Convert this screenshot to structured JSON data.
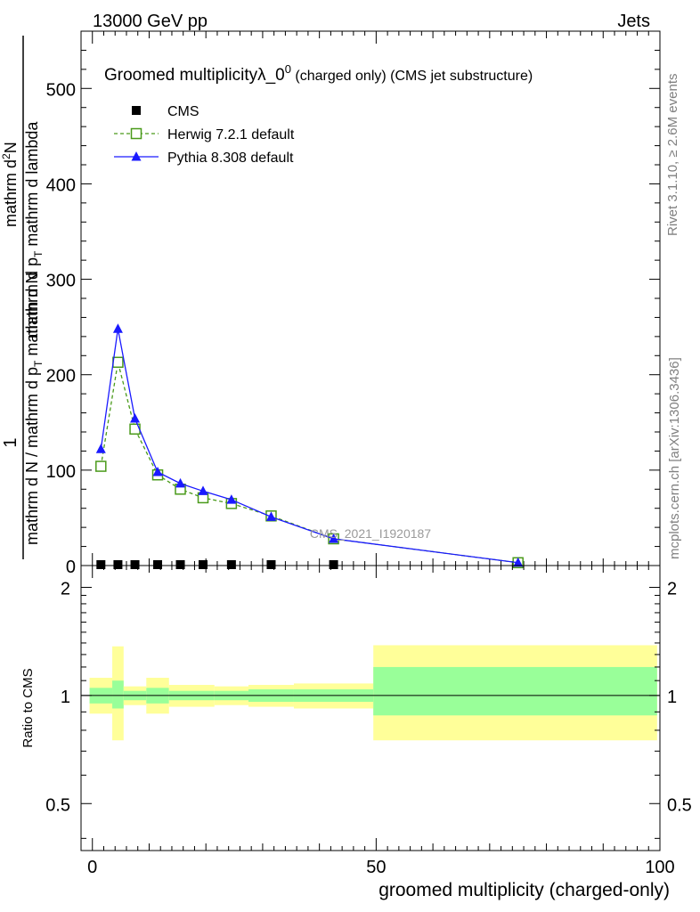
{
  "header": {
    "left": "13000 GeV pp",
    "right": "Jets"
  },
  "side_labels": {
    "rivet": "Rivet 3.1.10, ≥ 2.6M events",
    "mcplots": "mcplots.cern.ch [arXiv:1306.3436]"
  },
  "watermark": "CMS_2021_I1920187",
  "chart_data": [
    {
      "type": "line",
      "title": "Groomed multiplicityλ_0",
      "title_sup": "0",
      "title_suffix": " (charged only) (CMS jet substructure)",
      "ylabel_top": "1",
      "ylabel_bottom": "mathrm d N / mathrm d p",
      "ylabel_bottom_sub": "T",
      "ylabel_bottom_rest": " mathrm d N",
      "ylabel_numerator": "mathrm d",
      "ylabel_numerator_sup": "2",
      "ylabel_numerator_rest": "N",
      "ylabel_denominator": "mathrm d p",
      "ylabel_denominator_sub": "T",
      "ylabel_denominator_rest": " mathrm d lambda",
      "xlim": [
        -2,
        100
      ],
      "ylim": [
        0,
        560
      ],
      "y_ticks": [
        0,
        100,
        200,
        300,
        400,
        500
      ],
      "y_tick_labels": [
        "0",
        "100",
        "200",
        "300",
        "400",
        "500"
      ],
      "legend_position": "top-left",
      "series": [
        {
          "name": "CMS",
          "color": "#000000",
          "marker": "square-filled",
          "x": [
            1.5,
            4.5,
            7.5,
            11.5,
            15.5,
            19.5,
            24.5,
            31.5,
            42.5
          ],
          "y": [
            0,
            0,
            0,
            0,
            0,
            0,
            0,
            0,
            0
          ]
        },
        {
          "name": "Herwig 7.2.1 default",
          "color": "#4a9a1a",
          "marker": "square-open",
          "line": "dashed",
          "x": [
            1.5,
            4.5,
            7.5,
            11.5,
            15.5,
            19.5,
            24.5,
            31.5,
            42.5,
            75
          ],
          "y": [
            104,
            213,
            143,
            95,
            80,
            71,
            65,
            52,
            28,
            3
          ]
        },
        {
          "name": "Pythia 8.308 default",
          "color": "#1a1aff",
          "marker": "triangle-filled",
          "line": "solid",
          "x": [
            1.5,
            4.5,
            7.5,
            11.5,
            15.5,
            19.5,
            24.5,
            31.5,
            42.5,
            75
          ],
          "y": [
            122,
            248,
            154,
            98,
            86,
            78,
            69,
            51,
            28,
            3
          ]
        }
      ]
    },
    {
      "type": "area",
      "ylabel": "Ratio to CMS",
      "xlabel": "groomed multiplicity (charged-only)",
      "xlim": [
        -2,
        100
      ],
      "ylim": [
        0.37,
        2.3
      ],
      "scale": "log",
      "y_ticks": [
        0.5,
        1,
        2
      ],
      "y_tick_labels": [
        "0.5",
        "1",
        "2"
      ],
      "x_ticks": [
        0,
        50,
        100
      ],
      "x_tick_labels": [
        "0",
        "50",
        "100"
      ],
      "bins": [
        {
          "x0": -0.5,
          "x1": 3.5,
          "y_lo": 0.89,
          "y_hi": 1.12,
          "g_lo": 0.95,
          "g_hi": 1.05
        },
        {
          "x0": 3.5,
          "x1": 5.5,
          "y_lo": 0.75,
          "y_hi": 1.37,
          "g_lo": 0.92,
          "g_hi": 1.1
        },
        {
          "x0": 5.5,
          "x1": 9.5,
          "y_lo": 0.94,
          "y_hi": 1.06,
          "g_lo": 0.97,
          "g_hi": 1.03
        },
        {
          "x0": 9.5,
          "x1": 13.5,
          "y_lo": 0.89,
          "y_hi": 1.12,
          "g_lo": 0.95,
          "g_hi": 1.05
        },
        {
          "x0": 13.5,
          "x1": 21.5,
          "y_lo": 0.93,
          "y_hi": 1.07,
          "g_lo": 0.97,
          "g_hi": 1.03
        },
        {
          "x0": 21.5,
          "x1": 27.5,
          "y_lo": 0.94,
          "y_hi": 1.06,
          "g_lo": 0.97,
          "g_hi": 1.03
        },
        {
          "x0": 27.5,
          "x1": 35.5,
          "y_lo": 0.93,
          "y_hi": 1.07,
          "g_lo": 0.96,
          "g_hi": 1.04
        },
        {
          "x0": 35.5,
          "x1": 49.5,
          "y_lo": 0.92,
          "y_hi": 1.08,
          "g_lo": 0.96,
          "g_hi": 1.04
        },
        {
          "x0": 49.5,
          "x1": 99.5,
          "y_lo": 0.75,
          "y_hi": 1.38,
          "g_lo": 0.88,
          "g_hi": 1.2
        }
      ],
      "band_colors": {
        "outer": "#ffff99",
        "inner": "#99ff99"
      }
    }
  ]
}
